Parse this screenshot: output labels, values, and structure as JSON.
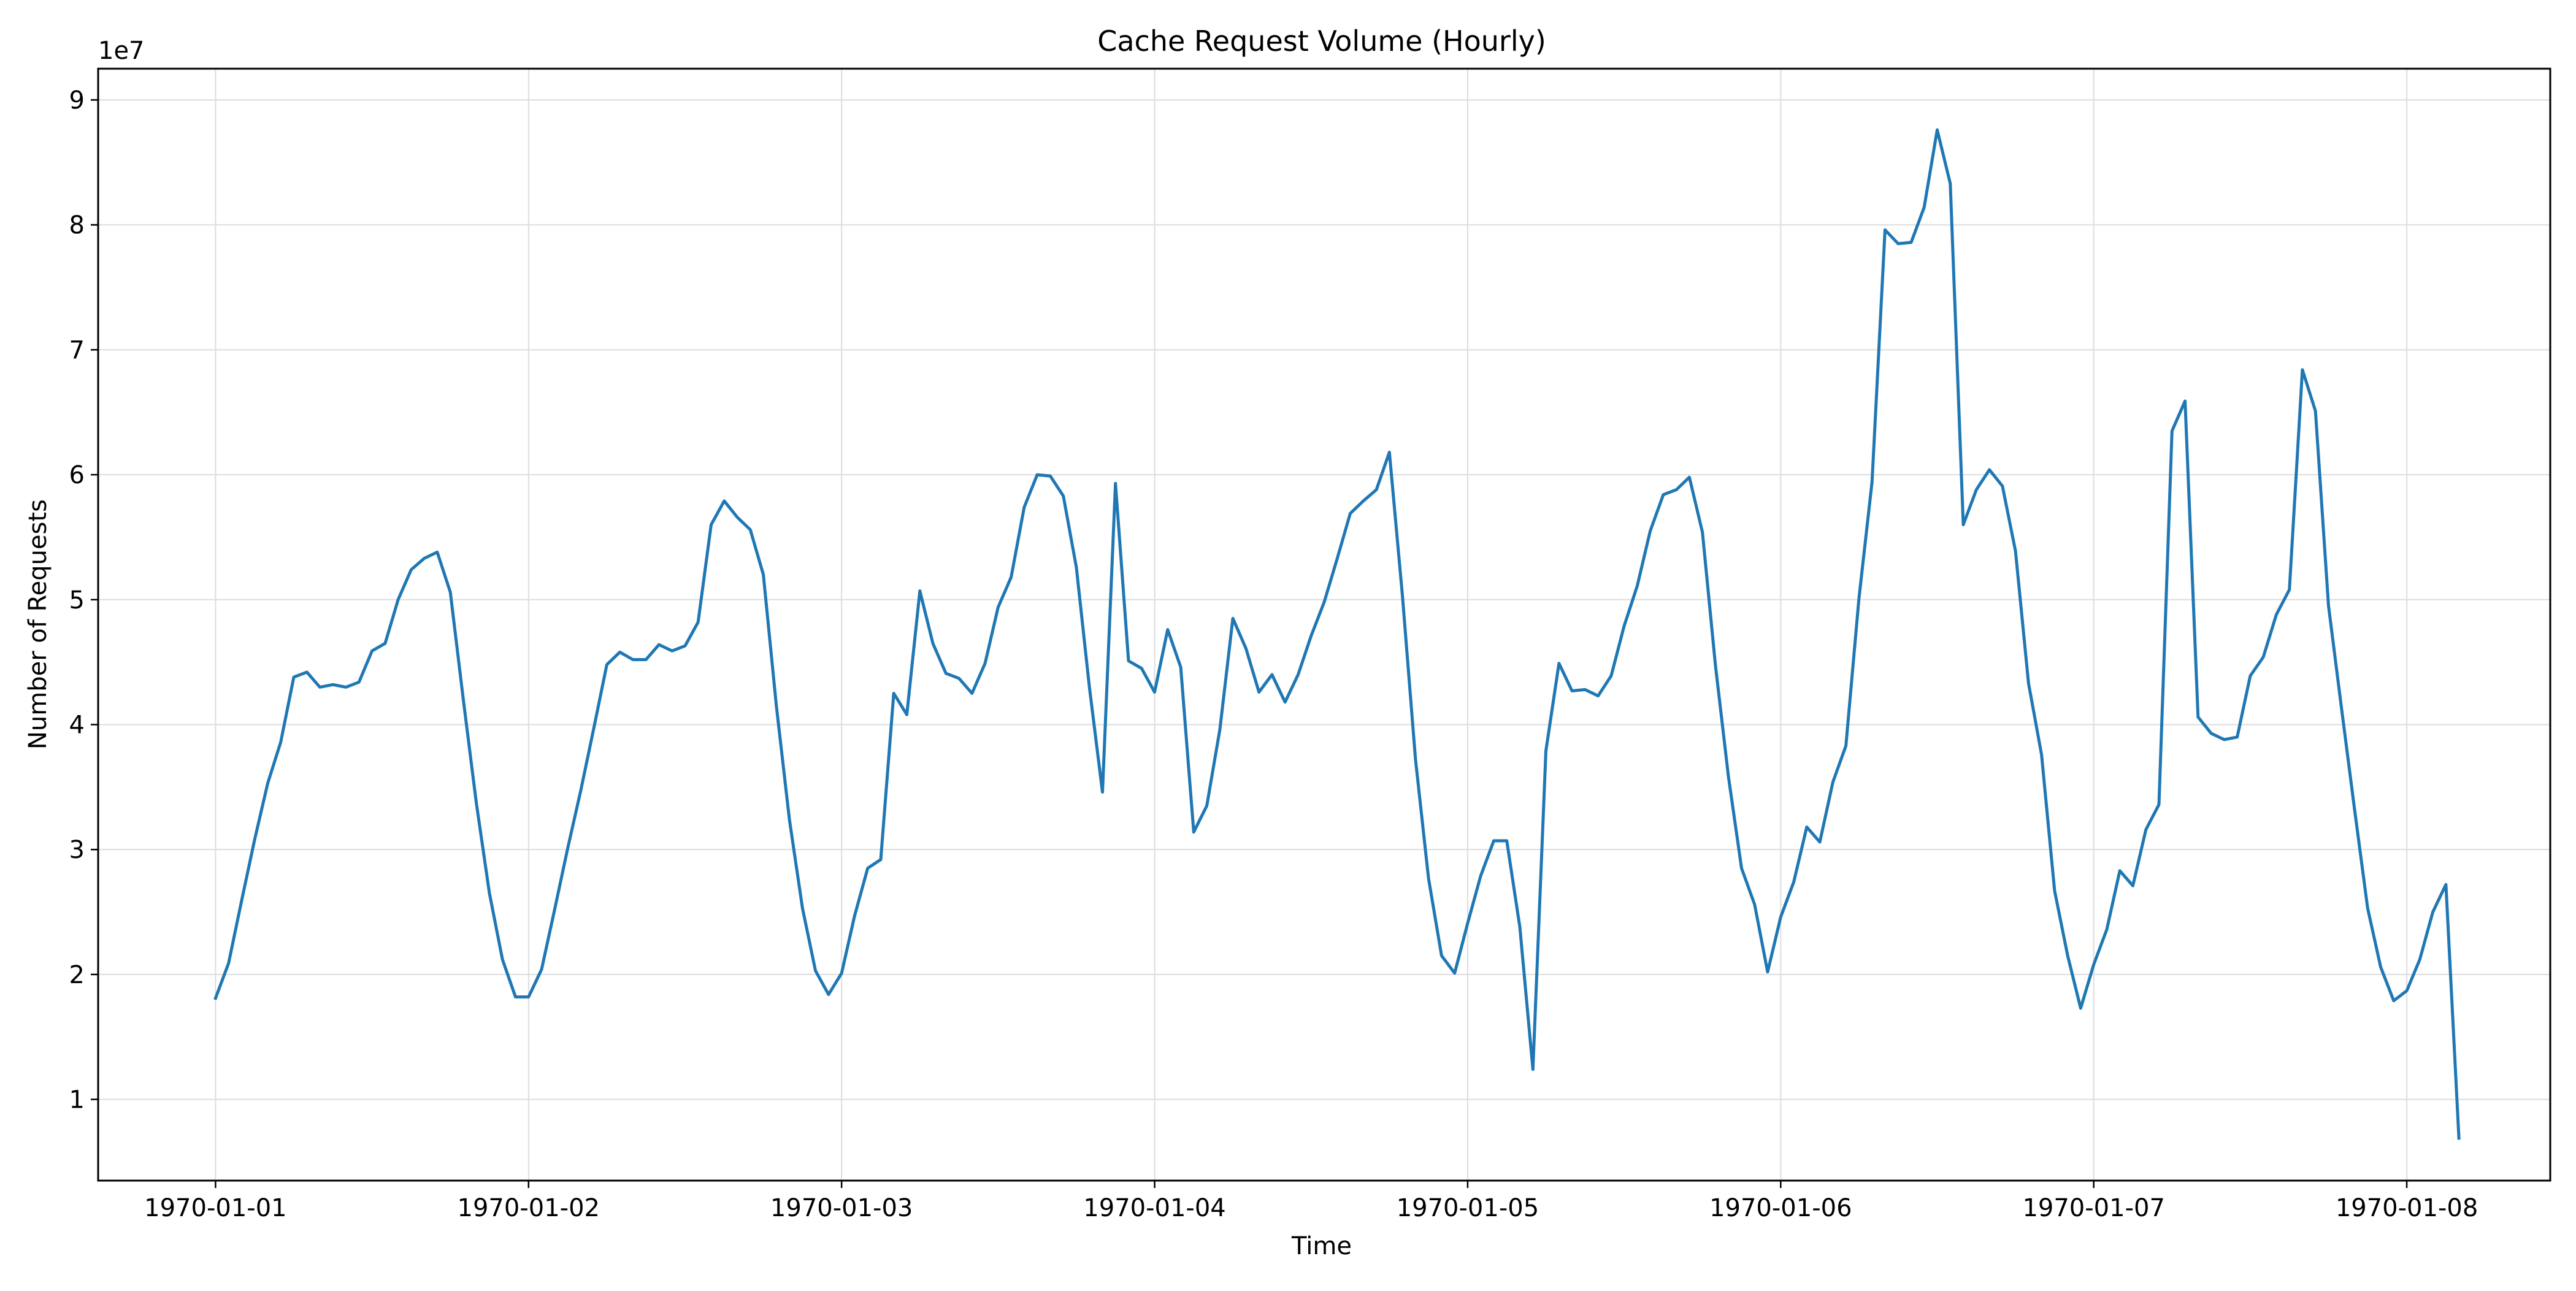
{
  "chart_data": {
    "type": "line",
    "title": "Cache Request Volume (Hourly)",
    "xlabel": "Time",
    "ylabel": "Number of Requests",
    "y_offset_label": "1e7",
    "y_scale": 10000000,
    "grid": true,
    "legend": "none",
    "x_ticks": [
      "1970-01-01",
      "1970-01-02",
      "1970-01-03",
      "1970-01-04",
      "1970-01-05",
      "1970-01-06",
      "1970-01-07",
      "1970-01-08"
    ],
    "y_ticks": [
      1,
      2,
      3,
      4,
      5,
      6,
      7,
      8,
      9
    ],
    "x_range": [
      "1969-12-31T15:00",
      "1970-01-08T11:00"
    ],
    "ylim": [
      3500000,
      92500000
    ],
    "colors": {
      "series": "#1f77b4",
      "grid": "#dddddd",
      "axis": "#000000"
    },
    "series": [
      {
        "name": "",
        "x": [
          "1970-01-01T00:00",
          "1970-01-01T01:00",
          "1970-01-01T02:00",
          "1970-01-01T03:00",
          "1970-01-01T04:00",
          "1970-01-01T05:00",
          "1970-01-01T06:00",
          "1970-01-01T07:00",
          "1970-01-01T08:00",
          "1970-01-01T09:00",
          "1970-01-01T10:00",
          "1970-01-01T11:00",
          "1970-01-01T12:00",
          "1970-01-01T13:00",
          "1970-01-01T14:00",
          "1970-01-01T15:00",
          "1970-01-01T16:00",
          "1970-01-01T17:00",
          "1970-01-01T18:00",
          "1970-01-01T19:00",
          "1970-01-01T20:00",
          "1970-01-01T21:00",
          "1970-01-01T22:00",
          "1970-01-01T23:00",
          "1970-01-02T00:00",
          "1970-01-02T01:00",
          "1970-01-02T02:00",
          "1970-01-02T03:00",
          "1970-01-02T04:00",
          "1970-01-02T05:00",
          "1970-01-02T06:00",
          "1970-01-02T07:00",
          "1970-01-02T08:00",
          "1970-01-02T09:00",
          "1970-01-02T10:00",
          "1970-01-02T11:00",
          "1970-01-02T12:00",
          "1970-01-02T13:00",
          "1970-01-02T14:00",
          "1970-01-02T15:00",
          "1970-01-02T16:00",
          "1970-01-02T17:00",
          "1970-01-02T18:00",
          "1970-01-02T19:00",
          "1970-01-02T20:00",
          "1970-01-02T21:00",
          "1970-01-02T22:00",
          "1970-01-02T23:00",
          "1970-01-03T00:00",
          "1970-01-03T01:00",
          "1970-01-03T02:00",
          "1970-01-03T03:00",
          "1970-01-03T04:00",
          "1970-01-03T05:00",
          "1970-01-03T06:00",
          "1970-01-03T07:00",
          "1970-01-03T08:00",
          "1970-01-03T09:00",
          "1970-01-03T10:00",
          "1970-01-03T11:00",
          "1970-01-03T12:00",
          "1970-01-03T13:00",
          "1970-01-03T14:00",
          "1970-01-03T15:00",
          "1970-01-03T16:00",
          "1970-01-03T17:00",
          "1970-01-03T18:00",
          "1970-01-03T19:00",
          "1970-01-03T20:00",
          "1970-01-03T21:00",
          "1970-01-03T22:00",
          "1970-01-03T23:00",
          "1970-01-04T00:00",
          "1970-01-04T01:00",
          "1970-01-04T02:00",
          "1970-01-04T03:00",
          "1970-01-04T04:00",
          "1970-01-04T05:00",
          "1970-01-04T06:00",
          "1970-01-04T07:00",
          "1970-01-04T08:00",
          "1970-01-04T09:00",
          "1970-01-04T10:00",
          "1970-01-04T11:00",
          "1970-01-04T12:00",
          "1970-01-04T13:00",
          "1970-01-04T14:00",
          "1970-01-04T15:00",
          "1970-01-04T16:00",
          "1970-01-04T17:00",
          "1970-01-04T18:00",
          "1970-01-04T19:00",
          "1970-01-04T20:00",
          "1970-01-04T21:00",
          "1970-01-04T22:00",
          "1970-01-04T23:00",
          "1970-01-05T00:00",
          "1970-01-05T01:00",
          "1970-01-05T02:00",
          "1970-01-05T03:00",
          "1970-01-05T04:00",
          "1970-01-05T05:00",
          "1970-01-05T06:00",
          "1970-01-05T07:00",
          "1970-01-05T08:00",
          "1970-01-05T09:00",
          "1970-01-05T10:00",
          "1970-01-05T11:00",
          "1970-01-05T12:00",
          "1970-01-05T13:00",
          "1970-01-05T14:00",
          "1970-01-05T15:00",
          "1970-01-05T16:00",
          "1970-01-05T17:00",
          "1970-01-05T18:00",
          "1970-01-05T19:00",
          "1970-01-05T20:00",
          "1970-01-05T21:00",
          "1970-01-05T22:00",
          "1970-01-05T23:00",
          "1970-01-06T00:00",
          "1970-01-06T01:00",
          "1970-01-06T02:00",
          "1970-01-06T03:00",
          "1970-01-06T04:00",
          "1970-01-06T05:00",
          "1970-01-06T06:00",
          "1970-01-06T07:00",
          "1970-01-06T08:00",
          "1970-01-06T09:00",
          "1970-01-06T10:00",
          "1970-01-06T11:00",
          "1970-01-06T12:00",
          "1970-01-06T13:00",
          "1970-01-06T14:00",
          "1970-01-06T15:00",
          "1970-01-06T16:00",
          "1970-01-06T17:00",
          "1970-01-06T18:00",
          "1970-01-06T19:00",
          "1970-01-06T20:00",
          "1970-01-06T21:00",
          "1970-01-06T22:00",
          "1970-01-06T23:00",
          "1970-01-07T00:00",
          "1970-01-07T01:00",
          "1970-01-07T02:00",
          "1970-01-07T03:00",
          "1970-01-07T04:00",
          "1970-01-07T05:00",
          "1970-01-07T06:00",
          "1970-01-07T07:00",
          "1970-01-07T08:00",
          "1970-01-07T09:00",
          "1970-01-07T10:00",
          "1970-01-07T11:00",
          "1970-01-07T12:00",
          "1970-01-07T13:00",
          "1970-01-07T14:00",
          "1970-01-07T15:00",
          "1970-01-07T16:00",
          "1970-01-07T17:00",
          "1970-01-07T18:00",
          "1970-01-07T19:00",
          "1970-01-07T20:00",
          "1970-01-07T21:00",
          "1970-01-07T22:00",
          "1970-01-07T23:00",
          "1970-01-08T00:00",
          "1970-01-08T01:00",
          "1970-01-08T02:00",
          "1970-01-08T03:00",
          "1970-01-08T04:00"
        ],
        "y": [
          18100000,
          20900000,
          25900000,
          30800000,
          35300000,
          38600000,
          43800000,
          44200000,
          43000000,
          43200000,
          43000000,
          43400000,
          45900000,
          46500000,
          50000000,
          52400000,
          53300000,
          53800000,
          50600000,
          42000000,
          33700000,
          26500000,
          21200000,
          18200000,
          18200000,
          20400000,
          25200000,
          30100000,
          34700000,
          39700000,
          44800000,
          45800000,
          45200000,
          45200000,
          46400000,
          45900000,
          46300000,
          48200000,
          56000000,
          57900000,
          56600000,
          55600000,
          52000000,
          41500000,
          32400000,
          25300000,
          20300000,
          18400000,
          20100000,
          24700000,
          28500000,
          29200000,
          42500000,
          40800000,
          50700000,
          46500000,
          44100000,
          43700000,
          42500000,
          44900000,
          49400000,
          51800000,
          57400000,
          60000000,
          59900000,
          58300000,
          52600000,
          43000000,
          34600000,
          59300000,
          45100000,
          44500000,
          42600000,
          47600000,
          44600000,
          31400000,
          33500000,
          39600000,
          48500000,
          46100000,
          42600000,
          44000000,
          41800000,
          44000000,
          47100000,
          49800000,
          53300000,
          56900000,
          57900000,
          58800000,
          61800000,
          50300000,
          37200000,
          27700000,
          21500000,
          20100000,
          24100000,
          27900000,
          30700000,
          30700000,
          23800000,
          12400000,
          37900000,
          44900000,
          42700000,
          42800000,
          42300000,
          43900000,
          47900000,
          51100000,
          55500000,
          58400000,
          58800000,
          59800000,
          55400000,
          44700000,
          35800000,
          28500000,
          25600000,
          20200000,
          24600000,
          27400000,
          31800000,
          30600000,
          35400000,
          38300000,
          50100000,
          59400000,
          79600000,
          78500000,
          78600000,
          81400000,
          87600000,
          83300000,
          56000000,
          58800000,
          60400000,
          59100000,
          53900000,
          43300000,
          37600000,
          26700000,
          21500000,
          17300000,
          20800000,
          23600000,
          28300000,
          27100000,
          31600000,
          33600000,
          63500000,
          65900000,
          40600000,
          39300000,
          38800000,
          39000000,
          43900000,
          45400000,
          48800000,
          50800000,
          68400000,
          65100000,
          49500000,
          41300000,
          33200000,
          25300000,
          20600000,
          17900000,
          18700000,
          21200000,
          25000000,
          27200000,
          6900000
        ]
      }
    ]
  }
}
